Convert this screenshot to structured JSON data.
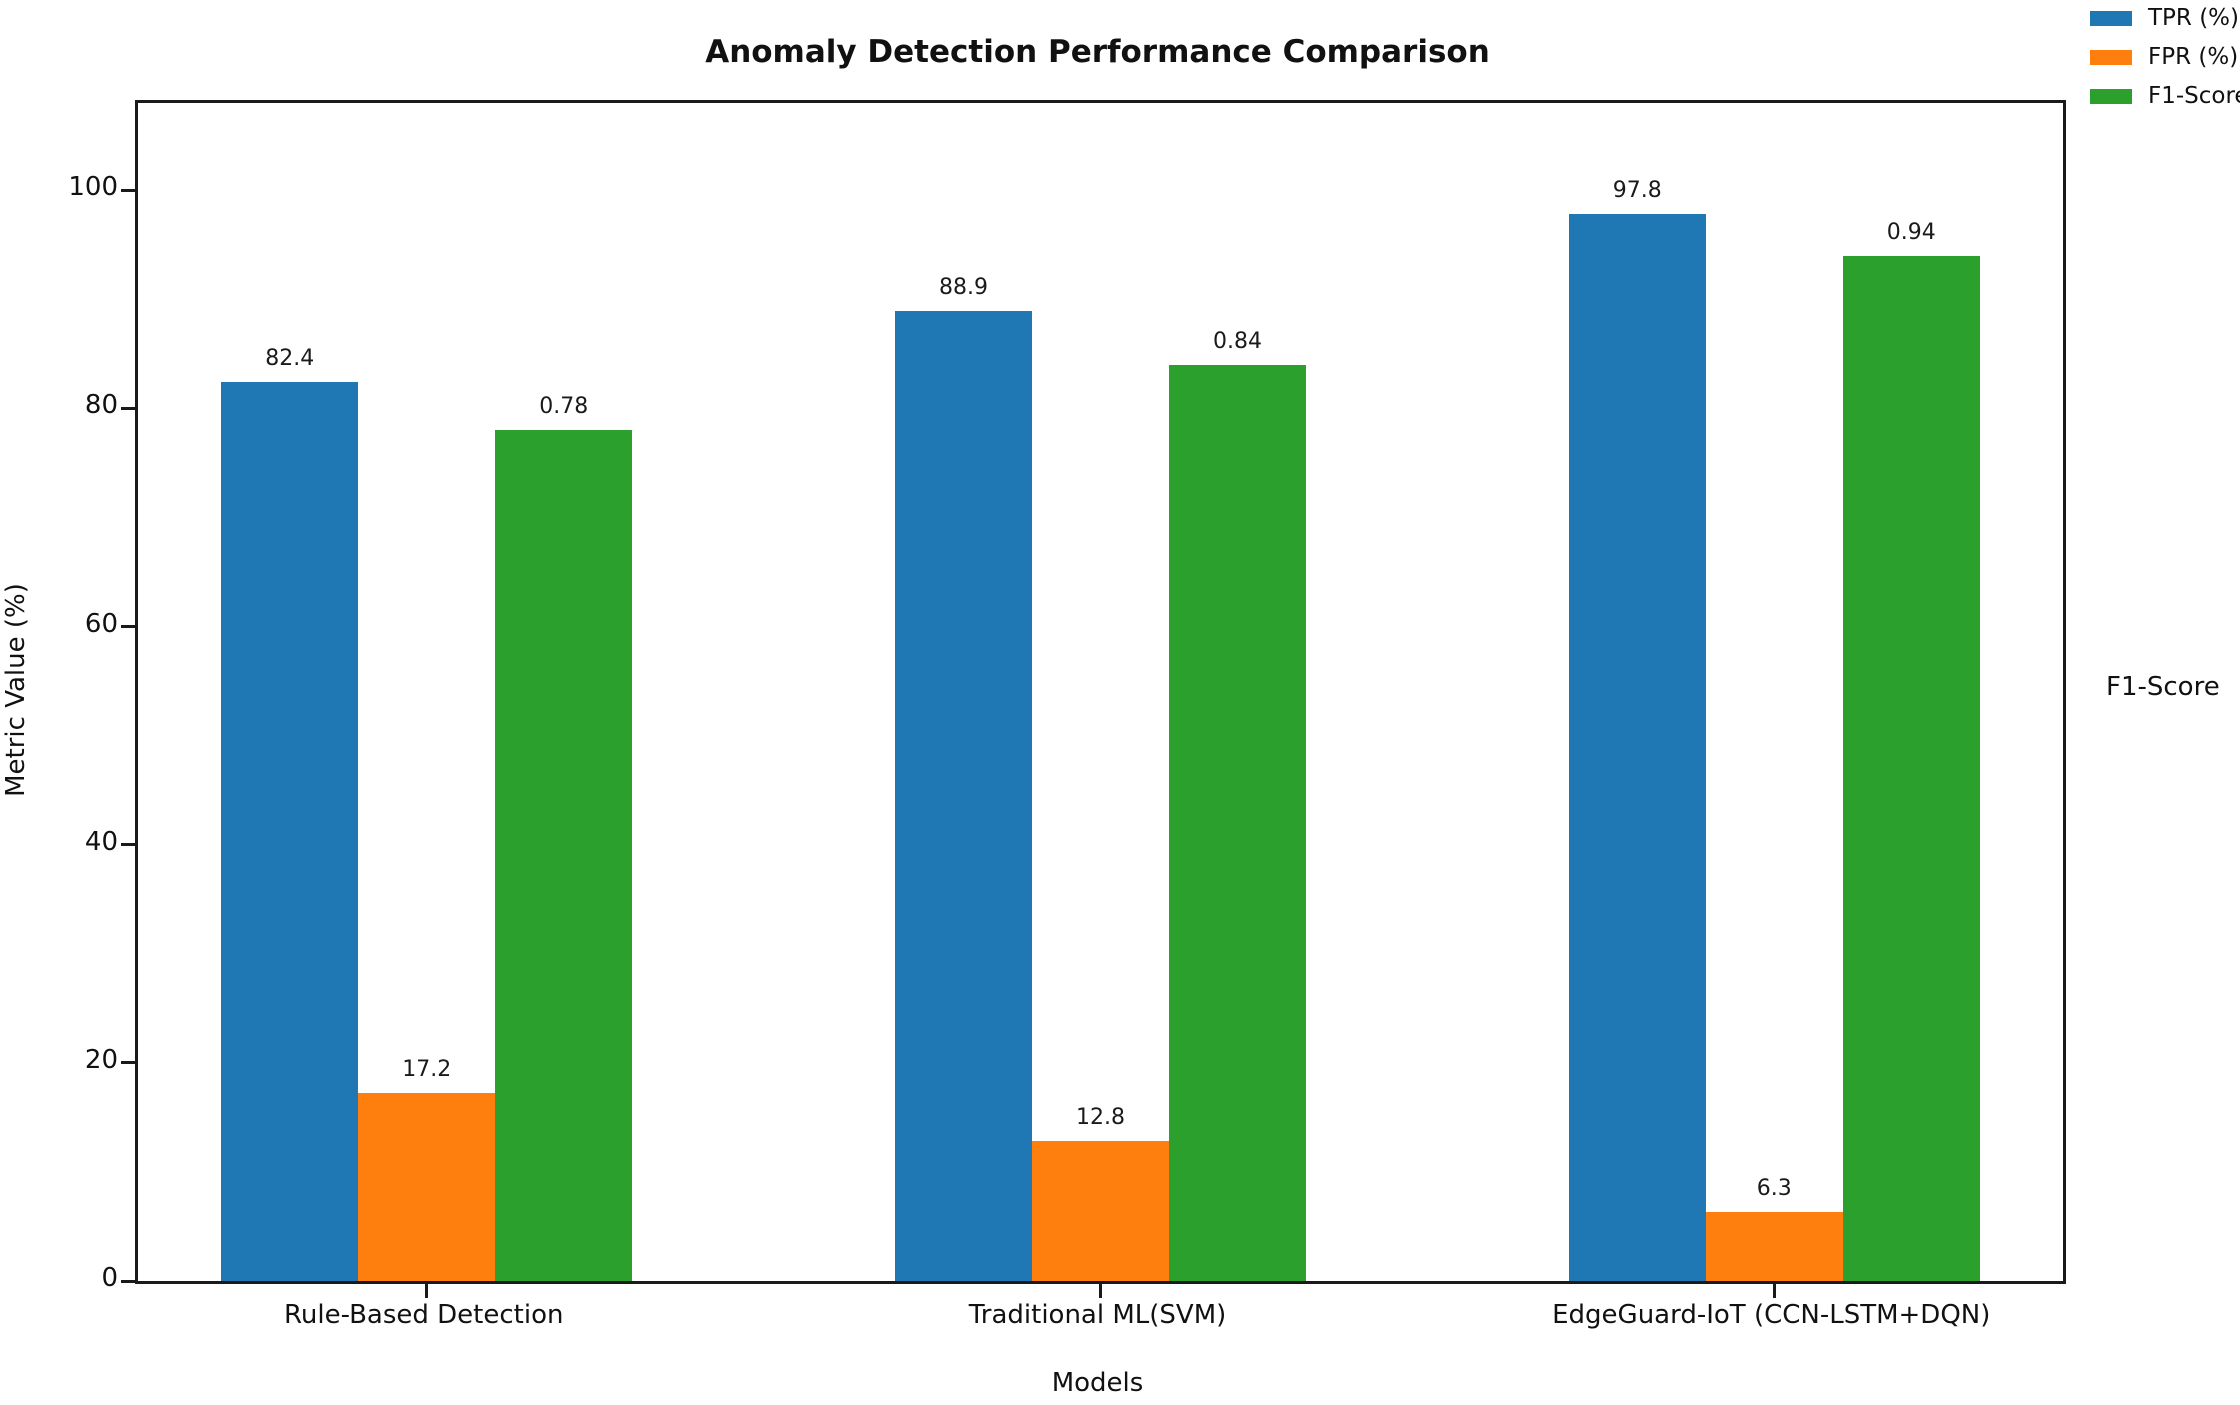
{
  "chart_data": {
    "type": "bar",
    "title": "Anomaly Detection Performance Comparison",
    "xlabel": "Models",
    "ylabel": "Metric Value (%)",
    "right_axis_label": "F1-Score",
    "categories": [
      "Rule-Based Detection",
      "Traditional ML(SVM)",
      "EdgeGuard-IoT (CCN-LSTM+DQN)"
    ],
    "series": [
      {
        "name": "TPR (%)",
        "color": "#1f77b4",
        "values": [
          82.4,
          88.9,
          97.8
        ],
        "plotted_values": [
          82.4,
          88.9,
          97.8
        ],
        "labels": [
          "82.4",
          "88.9",
          "97.8"
        ]
      },
      {
        "name": "FPR (%)",
        "color": "#ff7f0e",
        "values": [
          17.2,
          12.8,
          6.3
        ],
        "plotted_values": [
          17.2,
          12.8,
          6.3
        ],
        "labels": [
          "17.2",
          "12.8",
          "6.3"
        ]
      },
      {
        "name": "F1-Score",
        "color": "#2ca02c",
        "values": [
          0.78,
          0.84,
          0.94
        ],
        "plotted_values": [
          78,
          84,
          94
        ],
        "labels": [
          "0.78",
          "0.84",
          "0.94"
        ]
      }
    ],
    "yticks": [
      0,
      20,
      40,
      60,
      80,
      100
    ],
    "ytick_labels": [
      "0",
      "20",
      "40",
      "60",
      "80",
      "100"
    ],
    "ylim": [
      0,
      108
    ],
    "legend_position": "upper-right-outside",
    "grid": false,
    "colors": {
      "spine": "#1a1a1a",
      "background": "#ffffff",
      "text": "#111111"
    }
  }
}
